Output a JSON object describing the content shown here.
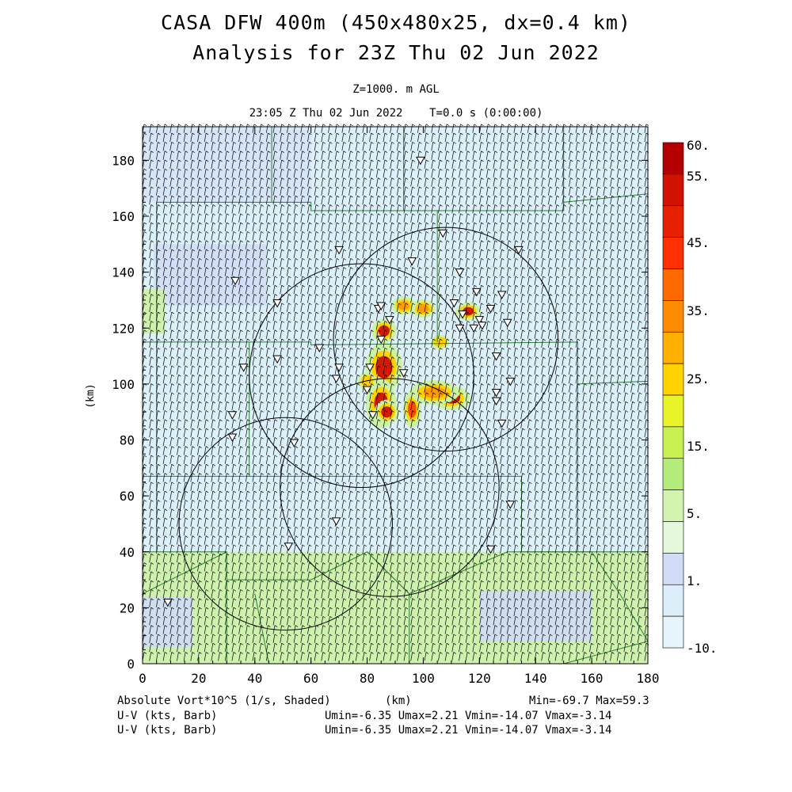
{
  "header": {
    "title_line1": "CASA DFW 400m (450x480x25, dx=0.4 km)",
    "title_line2": "Analysis for 23Z Thu 02 Jun 2022",
    "level": "Z=1000. m AGL",
    "time": "23:05 Z Thu 02 Jun 2022    T=0.0 s (0:00:00)"
  },
  "axes": {
    "xlabel": "(km)",
    "ylabel": "(km)",
    "x_ticks": [
      "0",
      "20",
      "40",
      "60",
      "80",
      "100",
      "120",
      "140",
      "160",
      "180"
    ],
    "y_ticks": [
      "0",
      "20",
      "40",
      "60",
      "80",
      "100",
      "120",
      "140",
      "160",
      "180"
    ],
    "xlim": [
      0,
      180
    ],
    "ylim": [
      0,
      192
    ]
  },
  "colorbar": {
    "labels": [
      "60.",
      "55.",
      "45.",
      "35.",
      "25.",
      "15.",
      "5.",
      "1.",
      "-10."
    ],
    "colors": [
      "#b40000",
      "#d21200",
      "#e62000",
      "#ff3000",
      "#ff6a00",
      "#ff8c00",
      "#ffb000",
      "#ffd200",
      "#e8f428",
      "#c8f050",
      "#b4ec7c",
      "#d2f4b0",
      "#e6f8dc",
      "#d2dcf8",
      "#dceefa",
      "#e6f4fc"
    ]
  },
  "footer": {
    "field": "Absolute Vort*10^5 (1/s, Shaded)",
    "xunit": "(km)",
    "minmax": "Min=-69.7 Max=59.3",
    "uv1_label": "U-V (kts, Barb)",
    "uv1_stats": "Umin=-6.35 Umax=2.21 Vmin=-14.07 Vmax=-3.14",
    "uv2_label": "U-V (kts, Barb)",
    "uv2_stats": "Umin=-6.35 Umax=2.21 Vmin=-14.07 Vmax=-3.14"
  },
  "map": {
    "radar_rings": [
      {
        "cx": 78,
        "cy": 103,
        "r": 40
      },
      {
        "cx": 108,
        "cy": 116,
        "r": 40
      },
      {
        "cx": 51,
        "cy": 50,
        "r": 38
      },
      {
        "cx": 88,
        "cy": 63,
        "r": 39
      }
    ],
    "stations": [
      [
        99,
        180
      ],
      [
        107,
        154
      ],
      [
        70,
        148
      ],
      [
        134,
        148
      ],
      [
        96,
        144
      ],
      [
        113,
        140
      ],
      [
        33,
        137
      ],
      [
        119,
        133
      ],
      [
        128,
        132
      ],
      [
        48,
        129
      ],
      [
        111,
        129
      ],
      [
        124,
        127
      ],
      [
        114,
        125
      ],
      [
        84,
        127
      ],
      [
        85,
        128
      ],
      [
        88,
        123
      ],
      [
        120,
        123
      ],
      [
        121,
        121
      ],
      [
        130,
        122
      ],
      [
        113,
        120
      ],
      [
        118,
        120
      ],
      [
        85,
        116
      ],
      [
        63,
        113
      ],
      [
        126,
        110
      ],
      [
        48,
        109
      ],
      [
        36,
        106
      ],
      [
        70,
        106
      ],
      [
        81,
        106
      ],
      [
        69,
        102
      ],
      [
        93,
        104
      ],
      [
        131,
        101
      ],
      [
        126,
        97
      ],
      [
        80,
        98
      ],
      [
        126,
        94
      ],
      [
        32,
        89
      ],
      [
        82,
        89
      ],
      [
        128,
        86
      ],
      [
        32,
        81
      ],
      [
        54,
        79
      ],
      [
        131,
        57
      ],
      [
        69,
        51
      ],
      [
        124,
        41
      ],
      [
        52,
        42
      ],
      [
        9,
        22
      ]
    ],
    "shading": [
      {
        "type": "rect",
        "x": 0,
        "y": 30,
        "w": 180,
        "h": 10,
        "level": "5"
      },
      {
        "type": "rect",
        "x": 0,
        "y": 0,
        "w": 180,
        "h": 30,
        "level": "5"
      },
      {
        "type": "rect",
        "x": 120,
        "y": 8,
        "w": 40,
        "h": 18,
        "level": "1"
      },
      {
        "type": "rect",
        "x": 0,
        "y": 6,
        "w": 18,
        "h": 18,
        "level": "1"
      },
      {
        "type": "rect",
        "x": 4,
        "y": 128,
        "w": 40,
        "h": 22,
        "level": "1"
      },
      {
        "type": "rect",
        "x": 0,
        "y": 118,
        "w": 8,
        "h": 16,
        "level": "5"
      }
    ],
    "cells": [
      {
        "x": 86,
        "y": 106,
        "rx": 3,
        "ry": 4,
        "v": "55"
      },
      {
        "x": 85,
        "y": 93,
        "rx": 2.5,
        "ry": 4,
        "v": "55"
      },
      {
        "x": 87,
        "y": 90,
        "rx": 2,
        "ry": 2,
        "v": "55"
      },
      {
        "x": 110,
        "y": 95,
        "rx": 3,
        "ry": 2,
        "v": "55"
      },
      {
        "x": 86,
        "y": 119,
        "rx": 2,
        "ry": 2,
        "v": "55"
      },
      {
        "x": 116,
        "y": 126,
        "rx": 2,
        "ry": 1.5,
        "v": "55"
      },
      {
        "x": 96,
        "y": 91,
        "rx": 1.5,
        "ry": 3,
        "v": "45"
      },
      {
        "x": 100,
        "y": 127,
        "rx": 2,
        "ry": 1.5,
        "v": "35"
      },
      {
        "x": 104,
        "y": 97,
        "rx": 4,
        "ry": 2,
        "v": "35"
      },
      {
        "x": 93,
        "y": 128,
        "rx": 2,
        "ry": 1.5,
        "v": "35"
      },
      {
        "x": 80,
        "y": 101,
        "rx": 1.5,
        "ry": 1.5,
        "v": "25"
      },
      {
        "x": 106,
        "y": 115,
        "rx": 1.5,
        "ry": 1.2,
        "v": "25"
      }
    ]
  }
}
